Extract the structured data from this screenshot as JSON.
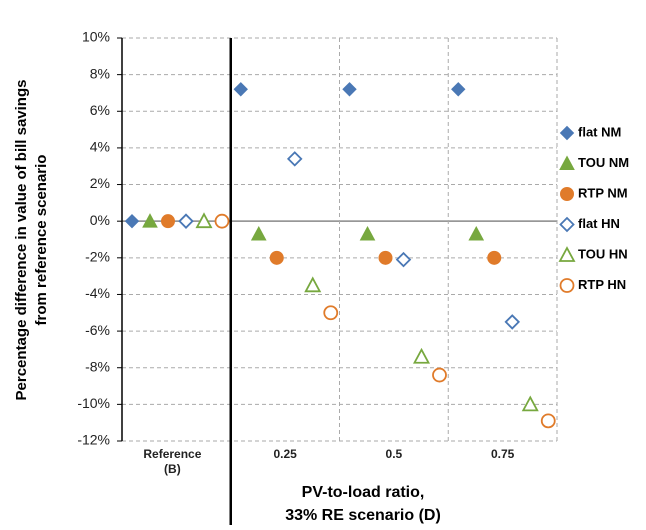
{
  "chart_data": {
    "type": "scatter",
    "categories": [
      "Reference (B)",
      "0.25",
      "0.5",
      "0.75"
    ],
    "ylabel": [
      "Percentage difference in value of bill savings",
      "from reference scenario"
    ],
    "xlabel": [
      "PV-to-load ratio,",
      "33% RE scenario (D)"
    ],
    "ylim": [
      -12,
      10
    ],
    "yticks": [
      {
        "value": -12,
        "label": "-12%"
      },
      {
        "value": -10,
        "label": "-10%"
      },
      {
        "value": -8,
        "label": "-8%"
      },
      {
        "value": -6,
        "label": "-6%"
      },
      {
        "value": -4,
        "label": "-4%"
      },
      {
        "value": -2,
        "label": "-2%"
      },
      {
        "value": 0,
        "label": "0%"
      },
      {
        "value": 2,
        "label": "2%"
      },
      {
        "value": 4,
        "label": "4%"
      },
      {
        "value": 6,
        "label": "6%"
      },
      {
        "value": 8,
        "label": "8%"
      },
      {
        "value": 10,
        "label": "10%"
      }
    ],
    "grid": true,
    "legend": "right",
    "series": [
      {
        "name": "flat NM",
        "color": "#4a78b5",
        "marker": "diamond",
        "filled": true,
        "values": [
          0,
          7.2,
          7.2,
          7.2
        ]
      },
      {
        "name": "TOU NM",
        "color": "#77a83f",
        "marker": "triangle",
        "filled": true,
        "values": [
          0,
          -0.7,
          -0.7,
          -0.7
        ]
      },
      {
        "name": "RTP NM",
        "color": "#e07b2a",
        "marker": "circle",
        "filled": true,
        "values": [
          0,
          -2.0,
          -2.0,
          -2.0
        ]
      },
      {
        "name": "flat HN",
        "color": "#4a78b5",
        "marker": "diamond",
        "filled": false,
        "values": [
          0,
          3.4,
          -2.1,
          -5.5
        ]
      },
      {
        "name": "TOU HN",
        "color": "#77a83f",
        "marker": "triangle",
        "filled": false,
        "values": [
          0,
          -3.5,
          -7.4,
          -10.0
        ]
      },
      {
        "name": "RTP HN",
        "color": "#e07b2a",
        "marker": "circle",
        "filled": false,
        "values": [
          0,
          -5.0,
          -8.4,
          -10.9
        ]
      }
    ]
  }
}
